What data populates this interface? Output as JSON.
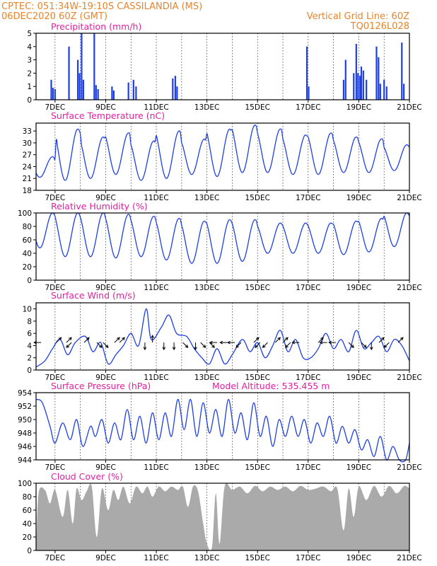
{
  "header": {
    "line1": "CPTEC:   051:34W-19:10S   CASSILANDIA (MS)",
    "line2_left": "06DEC2020 60Z (GMT)",
    "line2_right": "Vertical Grid Line: 60Z",
    "line3_right": "TQ0126L028"
  },
  "colors": {
    "series": "#1f3fe6",
    "cloud": "#aaaaaa",
    "title": "#e020a0",
    "header": "#e8842c"
  },
  "x_axis": {
    "labels": [
      "7DEC",
      "9DEC",
      "11DEC",
      "13DEC",
      "15DEC",
      "17DEC",
      "19DEC",
      "21DEC"
    ],
    "start": "06DEC2020 06Z",
    "end": "21DEC2020 00Z"
  },
  "chart_data": [
    {
      "id": "precip",
      "type": "bar",
      "title": "Precipitation (mm/h)",
      "ylim": [
        0,
        5
      ],
      "yticks": [
        0,
        1,
        2,
        3,
        4,
        5
      ],
      "events": [
        {
          "day": 6.85,
          "v": 1.5
        },
        {
          "day": 6.92,
          "v": 0.9
        },
        {
          "day": 7.0,
          "v": 0.8
        },
        {
          "day": 7.55,
          "v": 4.0
        },
        {
          "day": 7.9,
          "v": 3.0
        },
        {
          "day": 7.97,
          "v": 2.0
        },
        {
          "day": 8.05,
          "v": 5.0
        },
        {
          "day": 8.12,
          "v": 1.5
        },
        {
          "day": 8.55,
          "v": 5.0
        },
        {
          "day": 8.62,
          "v": 1.1
        },
        {
          "day": 8.7,
          "v": 0.8
        },
        {
          "day": 9.25,
          "v": 1.0
        },
        {
          "day": 9.32,
          "v": 0.7
        },
        {
          "day": 9.9,
          "v": 1.3
        },
        {
          "day": 10.1,
          "v": 1.5
        },
        {
          "day": 10.2,
          "v": 1.0
        },
        {
          "day": 11.65,
          "v": 1.6
        },
        {
          "day": 11.75,
          "v": 1.8
        },
        {
          "day": 11.82,
          "v": 1.0
        },
        {
          "day": 16.95,
          "v": 4.0
        },
        {
          "day": 17.02,
          "v": 1.0
        },
        {
          "day": 18.4,
          "v": 1.5
        },
        {
          "day": 18.48,
          "v": 3.0
        },
        {
          "day": 18.8,
          "v": 2.0
        },
        {
          "day": 18.9,
          "v": 4.2
        },
        {
          "day": 18.97,
          "v": 2.0
        },
        {
          "day": 19.05,
          "v": 1.8
        },
        {
          "day": 19.1,
          "v": 2.5
        },
        {
          "day": 19.18,
          "v": 2.2
        },
        {
          "day": 19.3,
          "v": 1.5
        },
        {
          "day": 19.7,
          "v": 4.0
        },
        {
          "day": 19.78,
          "v": 3.2
        },
        {
          "day": 19.85,
          "v": 1.2
        },
        {
          "day": 20.0,
          "v": 1.5
        },
        {
          "day": 20.1,
          "v": 1.0
        },
        {
          "day": 20.7,
          "v": 4.3
        },
        {
          "day": 20.78,
          "v": 1.2
        }
      ]
    },
    {
      "id": "temp",
      "type": "line",
      "title": "Surface Temperature (nC)",
      "ylim": [
        18,
        35
      ],
      "yticks": [
        18,
        21,
        24,
        27,
        30,
        33
      ],
      "day_min": [
        21.3,
        20.5,
        21.0,
        22.0,
        20.5,
        21.0,
        22.0,
        21.5,
        22.5,
        22.5,
        22.0,
        22.0,
        22.5,
        22.5,
        23.0
      ],
      "day_max": [
        26.5,
        33.5,
        31.5,
        32.5,
        30.5,
        33.0,
        31.0,
        33.5,
        34.5,
        33.5,
        32.0,
        32.5,
        31.5,
        31.0,
        29.5
      ]
    },
    {
      "id": "rh",
      "type": "line",
      "title": "Relative Humidity (%)",
      "ylim": [
        0,
        100
      ],
      "yticks": [
        0,
        20,
        40,
        60,
        80,
        100
      ],
      "day_min": [
        48,
        35,
        35,
        33,
        35,
        30,
        25,
        25,
        28,
        40,
        40,
        40,
        38,
        42,
        50
      ],
      "day_max": [
        100,
        100,
        100,
        98,
        95,
        92,
        88,
        90,
        90,
        85,
        85,
        85,
        88,
        92,
        100
      ]
    },
    {
      "id": "wind",
      "type": "line",
      "title": "Surface Wind (m/s)",
      "ylim": [
        0,
        11
      ],
      "yticks": [
        0,
        2,
        4,
        6,
        8,
        10
      ],
      "series": [
        {
          "day": 6.25,
          "v": 0.5
        },
        {
          "day": 6.6,
          "v": 1.5
        },
        {
          "day": 6.9,
          "v": 3.5
        },
        {
          "day": 7.2,
          "v": 5.0
        },
        {
          "day": 7.5,
          "v": 2.5
        },
        {
          "day": 7.8,
          "v": 4.5
        },
        {
          "day": 8.2,
          "v": 5.5
        },
        {
          "day": 8.5,
          "v": 3.0
        },
        {
          "day": 8.8,
          "v": 4.5
        },
        {
          "day": 9.1,
          "v": 1.0
        },
        {
          "day": 9.4,
          "v": 2.5
        },
        {
          "day": 9.7,
          "v": 4.0
        },
        {
          "day": 10.0,
          "v": 6.0
        },
        {
          "day": 10.3,
          "v": 4.0
        },
        {
          "day": 10.6,
          "v": 10.0
        },
        {
          "day": 10.8,
          "v": 5.0
        },
        {
          "day": 11.2,
          "v": 7.0
        },
        {
          "day": 11.5,
          "v": 9.0
        },
        {
          "day": 11.8,
          "v": 6.0
        },
        {
          "day": 12.2,
          "v": 5.5
        },
        {
          "day": 12.5,
          "v": 3.5
        },
        {
          "day": 12.8,
          "v": 2.0
        },
        {
          "day": 13.1,
          "v": 1.0
        },
        {
          "day": 13.4,
          "v": 3.5
        },
        {
          "day": 13.7,
          "v": 1.0
        },
        {
          "day": 14.0,
          "v": 2.5
        },
        {
          "day": 14.4,
          "v": 5.0
        },
        {
          "day": 14.7,
          "v": 3.0
        },
        {
          "day": 15.0,
          "v": 4.5
        },
        {
          "day": 15.3,
          "v": 2.0
        },
        {
          "day": 15.6,
          "v": 4.0
        },
        {
          "day": 15.9,
          "v": 6.5
        },
        {
          "day": 16.2,
          "v": 3.0
        },
        {
          "day": 16.5,
          "v": 5.0
        },
        {
          "day": 16.8,
          "v": 2.0
        },
        {
          "day": 17.1,
          "v": 2.0
        },
        {
          "day": 17.4,
          "v": 3.5
        },
        {
          "day": 17.7,
          "v": 6.0
        },
        {
          "day": 18.0,
          "v": 3.5
        },
        {
          "day": 18.3,
          "v": 5.0
        },
        {
          "day": 18.6,
          "v": 3.0
        },
        {
          "day": 18.9,
          "v": 6.5
        },
        {
          "day": 19.2,
          "v": 3.5
        },
        {
          "day": 19.5,
          "v": 4.5
        },
        {
          "day": 19.8,
          "v": 5.5
        },
        {
          "day": 20.1,
          "v": 3.0
        },
        {
          "day": 20.4,
          "v": 5.0
        },
        {
          "day": 20.7,
          "v": 4.0
        },
        {
          "day": 21.0,
          "v": 1.5
        }
      ],
      "vectors": [
        {
          "day": 6.45,
          "dir": "W"
        },
        {
          "day": 7.05,
          "dir": "NE"
        },
        {
          "day": 7.45,
          "dir": "NE"
        },
        {
          "day": 7.65,
          "dir": "SW"
        },
        {
          "day": 8.15,
          "dir": "NE"
        },
        {
          "day": 8.65,
          "dir": "SE"
        },
        {
          "day": 8.9,
          "dir": "SE"
        },
        {
          "day": 9.35,
          "dir": "NE"
        },
        {
          "day": 9.55,
          "dir": "NE"
        },
        {
          "day": 10.55,
          "dir": "S"
        },
        {
          "day": 10.85,
          "dir": "N"
        },
        {
          "day": 11.3,
          "dir": "S"
        },
        {
          "day": 11.7,
          "dir": "S"
        },
        {
          "day": 12.05,
          "dir": "SE"
        },
        {
          "day": 12.55,
          "dir": "S"
        },
        {
          "day": 12.75,
          "dir": "SE"
        },
        {
          "day": 13.1,
          "dir": "SE"
        },
        {
          "day": 13.4,
          "dir": "W"
        },
        {
          "day": 13.8,
          "dir": "W"
        },
        {
          "day": 14.1,
          "dir": "W"
        },
        {
          "day": 14.35,
          "dir": "SW"
        },
        {
          "day": 14.85,
          "dir": "NE"
        },
        {
          "day": 15.1,
          "dir": "SW"
        },
        {
          "day": 15.4,
          "dir": "SW"
        },
        {
          "day": 15.7,
          "dir": "NE"
        },
        {
          "day": 16.0,
          "dir": "NE"
        },
        {
          "day": 16.3,
          "dir": "SW"
        },
        {
          "day": 16.65,
          "dir": "W"
        },
        {
          "day": 17.4,
          "dir": "NE"
        },
        {
          "day": 17.75,
          "dir": "W"
        },
        {
          "day": 18.1,
          "dir": "W"
        },
        {
          "day": 18.6,
          "dir": "SE"
        },
        {
          "day": 19.1,
          "dir": "SE"
        },
        {
          "day": 19.5,
          "dir": "S"
        },
        {
          "day": 19.8,
          "dir": "NE"
        },
        {
          "day": 20.2,
          "dir": "SW"
        },
        {
          "day": 20.55,
          "dir": "NE"
        }
      ]
    },
    {
      "id": "pressure",
      "type": "line",
      "title": "Surface Pressure (hPa)",
      "annotation": "Model Altitude: 535.455  m",
      "ylim": [
        944,
        954
      ],
      "yticks": [
        944,
        946,
        948,
        950,
        952,
        954
      ],
      "series": [
        {
          "day": 6.25,
          "v": 953.0
        },
        {
          "day": 6.5,
          "v": 952.5
        },
        {
          "day": 6.8,
          "v": 949.0
        },
        {
          "day": 7.0,
          "v": 946.5
        },
        {
          "day": 7.3,
          "v": 949.5
        },
        {
          "day": 7.6,
          "v": 947.0
        },
        {
          "day": 7.85,
          "v": 950.0
        },
        {
          "day": 8.1,
          "v": 946.0
        },
        {
          "day": 8.4,
          "v": 949.0
        },
        {
          "day": 8.6,
          "v": 947.5
        },
        {
          "day": 8.85,
          "v": 950.0
        },
        {
          "day": 9.1,
          "v": 946.5
        },
        {
          "day": 9.35,
          "v": 949.5
        },
        {
          "day": 9.6,
          "v": 947.0
        },
        {
          "day": 9.85,
          "v": 951.5
        },
        {
          "day": 10.1,
          "v": 947.0
        },
        {
          "day": 10.35,
          "v": 950.5
        },
        {
          "day": 10.6,
          "v": 946.5
        },
        {
          "day": 10.85,
          "v": 951.0
        },
        {
          "day": 11.1,
          "v": 947.0
        },
        {
          "day": 11.35,
          "v": 951.0
        },
        {
          "day": 11.6,
          "v": 947.5
        },
        {
          "day": 11.85,
          "v": 953.0
        },
        {
          "day": 12.1,
          "v": 948.5
        },
        {
          "day": 12.35,
          "v": 953.0
        },
        {
          "day": 12.6,
          "v": 947.5
        },
        {
          "day": 12.85,
          "v": 952.5
        },
        {
          "day": 13.1,
          "v": 948.0
        },
        {
          "day": 13.35,
          "v": 951.5
        },
        {
          "day": 13.6,
          "v": 947.5
        },
        {
          "day": 13.85,
          "v": 953.0
        },
        {
          "day": 14.1,
          "v": 948.0
        },
        {
          "day": 14.35,
          "v": 951.0
        },
        {
          "day": 14.6,
          "v": 947.0
        },
        {
          "day": 14.85,
          "v": 952.5
        },
        {
          "day": 15.1,
          "v": 947.5
        },
        {
          "day": 15.35,
          "v": 950.5
        },
        {
          "day": 15.6,
          "v": 946.0
        },
        {
          "day": 15.85,
          "v": 950.0
        },
        {
          "day": 16.1,
          "v": 947.5
        },
        {
          "day": 16.35,
          "v": 950.5
        },
        {
          "day": 16.6,
          "v": 947.5
        },
        {
          "day": 16.85,
          "v": 950.0
        },
        {
          "day": 17.1,
          "v": 946.5
        },
        {
          "day": 17.35,
          "v": 949.5
        },
        {
          "day": 17.6,
          "v": 947.5
        },
        {
          "day": 17.85,
          "v": 950.5
        },
        {
          "day": 18.1,
          "v": 946.5
        },
        {
          "day": 18.35,
          "v": 949.0
        },
        {
          "day": 18.6,
          "v": 946.5
        },
        {
          "day": 18.85,
          "v": 948.5
        },
        {
          "day": 19.1,
          "v": 945.5
        },
        {
          "day": 19.35,
          "v": 947.0
        },
        {
          "day": 19.6,
          "v": 944.5
        },
        {
          "day": 19.85,
          "v": 947.5
        },
        {
          "day": 20.1,
          "v": 944.0
        },
        {
          "day": 20.35,
          "v": 946.0
        },
        {
          "day": 20.6,
          "v": 944.0
        },
        {
          "day": 20.85,
          "v": 944.0
        },
        {
          "day": 21.0,
          "v": 946.5
        }
      ]
    },
    {
      "id": "cloud",
      "type": "area",
      "title": "Cloud Cover (%)",
      "ylim": [
        0,
        100
      ],
      "yticks": [
        0,
        20,
        40,
        60,
        80,
        100
      ],
      "series": [
        {
          "day": 6.25,
          "v": 0
        },
        {
          "day": 6.35,
          "v": 85
        },
        {
          "day": 6.6,
          "v": 90
        },
        {
          "day": 6.8,
          "v": 70
        },
        {
          "day": 7.0,
          "v": 90
        },
        {
          "day": 7.3,
          "v": 50
        },
        {
          "day": 7.5,
          "v": 90
        },
        {
          "day": 7.7,
          "v": 40
        },
        {
          "day": 7.85,
          "v": 92
        },
        {
          "day": 8.05,
          "v": 75
        },
        {
          "day": 8.25,
          "v": 88
        },
        {
          "day": 8.45,
          "v": 95
        },
        {
          "day": 8.65,
          "v": 20
        },
        {
          "day": 8.85,
          "v": 92
        },
        {
          "day": 9.1,
          "v": 60
        },
        {
          "day": 9.3,
          "v": 90
        },
        {
          "day": 9.5,
          "v": 75
        },
        {
          "day": 9.7,
          "v": 95
        },
        {
          "day": 9.95,
          "v": 70
        },
        {
          "day": 10.2,
          "v": 95
        },
        {
          "day": 10.45,
          "v": 85
        },
        {
          "day": 10.65,
          "v": 95
        },
        {
          "day": 10.85,
          "v": 80
        },
        {
          "day": 11.1,
          "v": 95
        },
        {
          "day": 11.35,
          "v": 88
        },
        {
          "day": 11.6,
          "v": 95
        },
        {
          "day": 11.85,
          "v": 90
        },
        {
          "day": 12.05,
          "v": 95
        },
        {
          "day": 12.25,
          "v": 65
        },
        {
          "day": 12.45,
          "v": 95
        },
        {
          "day": 12.65,
          "v": 88
        },
        {
          "day": 12.85,
          "v": 40
        },
        {
          "day": 13.0,
          "v": 10
        },
        {
          "day": 13.2,
          "v": 5
        },
        {
          "day": 13.35,
          "v": 85
        },
        {
          "day": 13.5,
          "v": 10
        },
        {
          "day": 13.7,
          "v": 95
        },
        {
          "day": 14.0,
          "v": 90
        },
        {
          "day": 14.3,
          "v": 95
        },
        {
          "day": 14.6,
          "v": 85
        },
        {
          "day": 14.9,
          "v": 96
        },
        {
          "day": 15.2,
          "v": 88
        },
        {
          "day": 15.5,
          "v": 95
        },
        {
          "day": 15.8,
          "v": 90
        },
        {
          "day": 16.1,
          "v": 95
        },
        {
          "day": 16.4,
          "v": 88
        },
        {
          "day": 16.7,
          "v": 96
        },
        {
          "day": 17.0,
          "v": 90
        },
        {
          "day": 17.3,
          "v": 92
        },
        {
          "day": 17.6,
          "v": 95
        },
        {
          "day": 17.9,
          "v": 88
        },
        {
          "day": 18.15,
          "v": 92
        },
        {
          "day": 18.4,
          "v": 30
        },
        {
          "day": 18.6,
          "v": 92
        },
        {
          "day": 18.8,
          "v": 50
        },
        {
          "day": 19.0,
          "v": 95
        },
        {
          "day": 19.3,
          "v": 75
        },
        {
          "day": 19.6,
          "v": 96
        },
        {
          "day": 19.9,
          "v": 80
        },
        {
          "day": 20.2,
          "v": 96
        },
        {
          "day": 20.5,
          "v": 85
        },
        {
          "day": 20.8,
          "v": 96
        },
        {
          "day": 21.0,
          "v": 92
        }
      ]
    }
  ]
}
